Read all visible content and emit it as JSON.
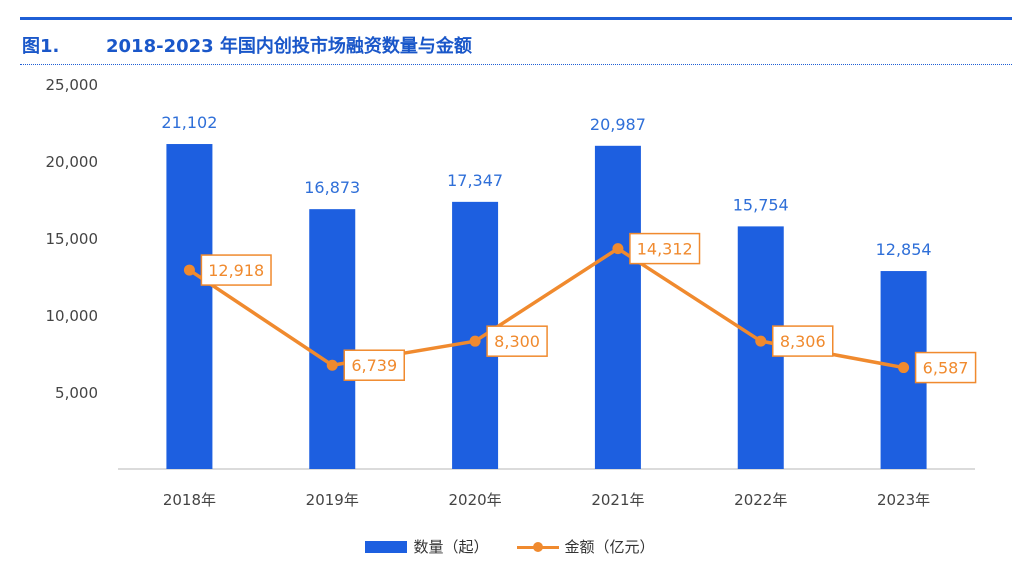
{
  "header": {
    "figure_number": "图1.",
    "title": "2018-2023 年国内创投市场融资数量与金额"
  },
  "colors": {
    "accent": "#1f5fd6",
    "bar": "#1d5fe0",
    "line": "#f08a2e",
    "bar_label": "#2f6fd8",
    "line_label": "#f08a2e"
  },
  "chart_data": {
    "type": "bar",
    "categories": [
      "2018年",
      "2019年",
      "2020年",
      "2021年",
      "2022年",
      "2023年"
    ],
    "series": [
      {
        "name": "数量（起）",
        "type": "bar",
        "values": [
          21102,
          16873,
          17347,
          20987,
          15754,
          12854
        ],
        "labels": [
          "21,102",
          "16,873",
          "17,347",
          "20,987",
          "15,754",
          "12,854"
        ]
      },
      {
        "name": "金额（亿元）",
        "type": "line",
        "values": [
          12918,
          6739,
          8300,
          14312,
          8306,
          6587
        ],
        "labels": [
          "12,918",
          "6,739",
          "8,300",
          "14,312",
          "8,306",
          "6,587"
        ]
      }
    ],
    "yticks": [
      "25,000",
      "20,000",
      "15,000",
      "10,000",
      "5,000"
    ],
    "ytick_values": [
      25000,
      20000,
      15000,
      10000,
      5000
    ],
    "ylim": [
      0,
      25000
    ],
    "grid": false,
    "legend_position": "bottom"
  }
}
